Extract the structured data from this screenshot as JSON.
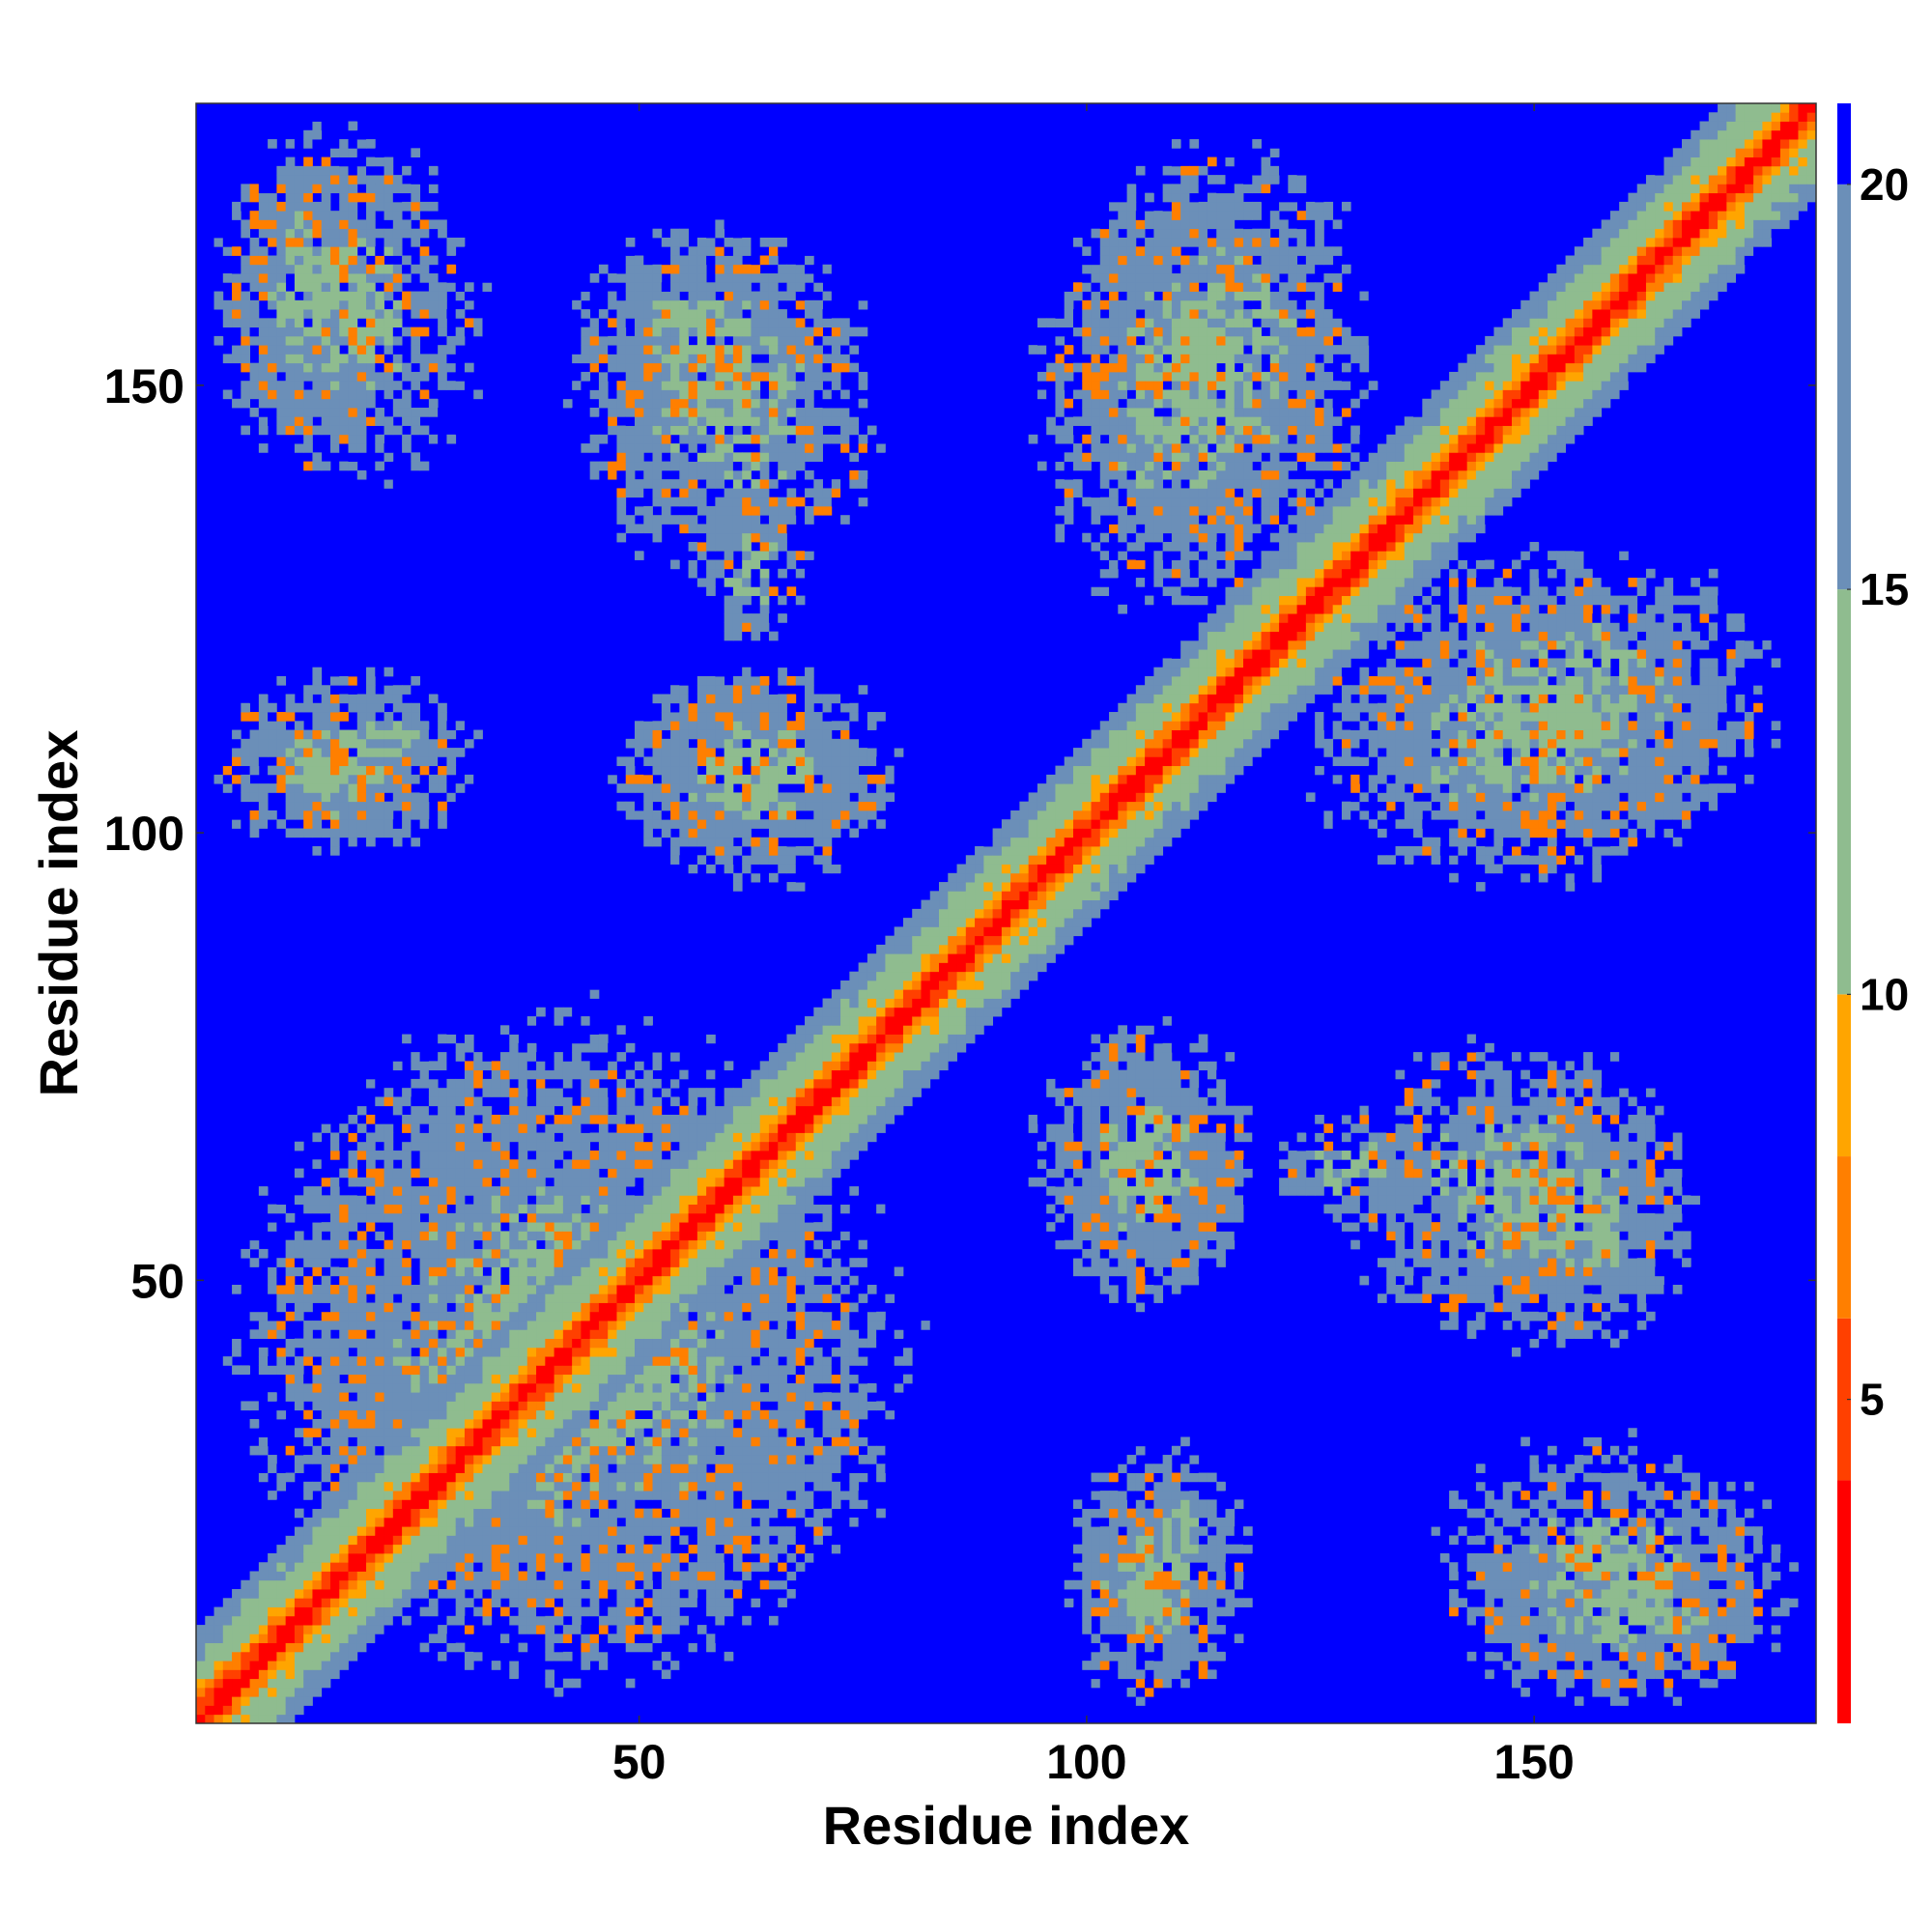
{
  "chart_data": {
    "type": "heatmap",
    "title": "",
    "xlabel": "Residue index",
    "ylabel": "Residue index",
    "xlim": [
      1,
      181
    ],
    "ylim": [
      1,
      181
    ],
    "x_ticks": [
      50,
      100,
      150
    ],
    "y_ticks": [
      50,
      100,
      150
    ],
    "colorbar": {
      "range": [
        1,
        21
      ],
      "ticks": [
        5,
        10,
        15,
        20
      ],
      "colors": [
        "#ff0000",
        "#ff4000",
        "#ff7f00",
        "#ffa500",
        "#8fbc8f",
        "#6b8fb8",
        "#0000ff"
      ],
      "boundaries": [
        1,
        4,
        6,
        8,
        10,
        15,
        20,
        21
      ]
    },
    "grid": false,
    "legend": "none",
    "description_values": {
      "diagonal_band_width": 4,
      "cutoff_value": 21,
      "contact_clusters": [
        {
          "x": [
            1,
            25
          ],
          "y": [
            140,
            181
          ]
        },
        {
          "x": [
            40,
            75
          ],
          "y": [
            140,
            170
          ]
        },
        {
          "x": [
            55,
            70
          ],
          "y": [
            120,
            140
          ]
        },
        {
          "x": [
            45,
            82
          ],
          "y": [
            95,
            120
          ]
        },
        {
          "x": [
            1,
            30
          ],
          "y": [
            95,
            120
          ]
        },
        {
          "x": [
            1,
            80
          ],
          "y": [
            1,
            85
          ]
        },
        {
          "x": [
            92,
            130
          ],
          "y": [
            120,
            178
          ]
        },
        {
          "x": [
            125,
            181
          ],
          "y": [
            95,
            135
          ]
        },
        {
          "x": [
            92,
            120
          ],
          "y": [
            45,
            80
          ]
        },
        {
          "x": [
            125,
            170
          ],
          "y": [
            40,
            80
          ]
        },
        {
          "x": [
            97,
            120
          ],
          "y": [
            5,
            35
          ]
        },
        {
          "x": [
            135,
            181
          ],
          "y": [
            1,
            35
          ]
        }
      ]
    }
  }
}
